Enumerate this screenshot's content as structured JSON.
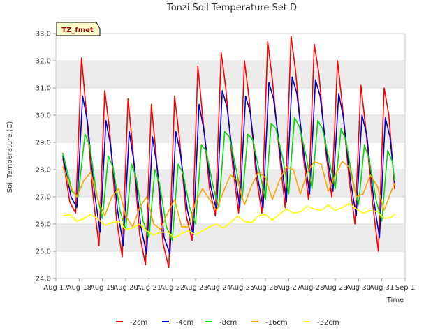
{
  "chart_data": {
    "type": "line",
    "title": "Tonzi Soil Temperature Set D",
    "xlabel": "Time",
    "ylabel": "Soil Temperature (C)",
    "ylim": [
      24.0,
      33.0
    ],
    "xlim": [
      17,
      32
    ],
    "yticks": [
      "24.0",
      "25.0",
      "26.0",
      "27.0",
      "28.0",
      "29.0",
      "30.0",
      "31.0",
      "32.0",
      "33.0"
    ],
    "xticks": [
      "Aug 17",
      "Aug 18",
      "Aug 19",
      "Aug 20",
      "Aug 21",
      "Aug 22",
      "Aug 23",
      "Aug 24",
      "Aug 25",
      "Aug 26",
      "Aug 27",
      "Aug 28",
      "Aug 29",
      "Aug 30",
      "Aug 31",
      "Sep 1"
    ],
    "legend_placement": "bottom",
    "grid": "alternating horizontal bands",
    "annotation": "TZ_fmet",
    "x_unit_note": "x values are day of August",
    "series": [
      {
        "name": "-2cm",
        "color": "#ff0000",
        "x": [
          17.3,
          17.6,
          17.85,
          18.1,
          18.3,
          18.6,
          18.85,
          19.1,
          19.3,
          19.6,
          19.85,
          20.1,
          20.3,
          20.6,
          20.85,
          21.1,
          21.3,
          21.6,
          21.85,
          22.1,
          22.3,
          22.6,
          22.85,
          23.1,
          23.3,
          23.6,
          23.85,
          24.1,
          24.3,
          24.6,
          24.85,
          25.1,
          25.3,
          25.6,
          25.85,
          26.1,
          26.3,
          26.6,
          26.85,
          27.1,
          27.3,
          27.6,
          27.85,
          28.1,
          28.3,
          28.6,
          28.85,
          29.1,
          29.3,
          29.6,
          29.85,
          30.1,
          30.3,
          30.6,
          30.85,
          31.1,
          31.3,
          31.55
        ],
        "y": [
          28.4,
          26.8,
          26.4,
          32.1,
          30.2,
          27.0,
          25.2,
          30.9,
          29.5,
          26.2,
          24.8,
          30.6,
          28.8,
          25.6,
          24.5,
          30.4,
          28.6,
          25.3,
          24.4,
          30.7,
          29.2,
          26.3,
          25.4,
          31.8,
          30.0,
          27.3,
          26.3,
          32.3,
          31.0,
          28.1,
          26.4,
          32.0,
          30.6,
          27.8,
          26.4,
          32.7,
          31.3,
          28.6,
          26.6,
          32.9,
          31.6,
          28.7,
          26.9,
          32.6,
          31.5,
          28.6,
          27.0,
          32.0,
          30.4,
          27.6,
          26.0,
          31.1,
          29.6,
          26.8,
          25.0,
          31.0,
          30.0,
          27.3
        ]
      },
      {
        "name": "-4cm",
        "color": "#0000cc",
        "x": [
          17.3,
          17.65,
          17.9,
          18.15,
          18.35,
          18.65,
          18.9,
          19.15,
          19.35,
          19.65,
          19.9,
          20.15,
          20.35,
          20.65,
          20.9,
          21.15,
          21.35,
          21.65,
          21.9,
          22.15,
          22.35,
          22.65,
          22.9,
          23.15,
          23.35,
          23.65,
          23.9,
          24.15,
          24.35,
          24.65,
          24.9,
          25.15,
          25.35,
          25.65,
          25.9,
          26.15,
          26.35,
          26.65,
          26.9,
          27.15,
          27.35,
          27.65,
          27.9,
          28.15,
          28.35,
          28.65,
          28.9,
          29.15,
          29.35,
          29.65,
          29.9,
          30.15,
          30.35,
          30.65,
          30.9,
          31.15,
          31.35,
          31.55
        ],
        "y": [
          28.5,
          27.0,
          26.6,
          30.7,
          29.8,
          27.2,
          25.7,
          29.8,
          28.9,
          26.5,
          25.2,
          29.4,
          28.3,
          25.9,
          24.9,
          29.2,
          28.1,
          25.5,
          24.9,
          29.4,
          28.6,
          26.5,
          25.6,
          30.4,
          29.5,
          27.4,
          26.5,
          30.9,
          30.3,
          28.1,
          26.6,
          30.7,
          30.1,
          27.8,
          26.6,
          31.2,
          30.6,
          28.5,
          26.8,
          31.4,
          30.8,
          28.6,
          27.1,
          31.3,
          30.7,
          28.5,
          27.2,
          30.8,
          29.9,
          27.6,
          26.3,
          30.0,
          29.3,
          26.9,
          25.5,
          29.9,
          29.2,
          27.5
        ]
      },
      {
        "name": "-8cm",
        "color": "#00dd00",
        "x": [
          17.3,
          17.7,
          17.95,
          18.25,
          18.45,
          18.75,
          19.0,
          19.25,
          19.45,
          19.75,
          20.0,
          20.25,
          20.45,
          20.75,
          21.0,
          21.25,
          21.45,
          21.75,
          22.0,
          22.25,
          22.45,
          22.75,
          23.0,
          23.25,
          23.45,
          23.75,
          24.0,
          24.25,
          24.45,
          24.75,
          25.0,
          25.25,
          25.45,
          25.75,
          26.0,
          26.25,
          26.45,
          26.75,
          27.0,
          27.25,
          27.45,
          27.75,
          28.0,
          28.25,
          28.45,
          28.75,
          29.0,
          29.25,
          29.45,
          29.75,
          30.0,
          30.25,
          30.45,
          30.75,
          31.0,
          31.25,
          31.45,
          31.55
        ],
        "y": [
          28.6,
          27.2,
          27.0,
          29.3,
          28.9,
          27.1,
          26.2,
          28.5,
          28.1,
          26.5,
          25.8,
          28.2,
          27.7,
          26.1,
          25.5,
          28.0,
          27.5,
          25.9,
          25.4,
          28.2,
          27.9,
          26.6,
          26.0,
          28.9,
          28.7,
          27.4,
          26.6,
          29.4,
          29.2,
          28.0,
          26.9,
          29.3,
          29.1,
          27.9,
          26.9,
          29.7,
          29.5,
          28.4,
          27.1,
          29.9,
          29.6,
          28.5,
          27.3,
          29.8,
          29.5,
          28.3,
          27.3,
          29.5,
          29.1,
          27.6,
          26.7,
          28.9,
          28.4,
          26.9,
          26.1,
          28.7,
          28.3,
          27.6
        ]
      },
      {
        "name": "-16cm",
        "color": "#ffa500",
        "x": [
          17.3,
          17.6,
          17.9,
          18.2,
          18.5,
          18.8,
          19.1,
          19.4,
          19.7,
          20.0,
          20.3,
          20.6,
          20.9,
          21.2,
          21.5,
          21.8,
          22.1,
          22.4,
          22.7,
          23.0,
          23.3,
          23.6,
          23.9,
          24.2,
          24.5,
          24.8,
          25.1,
          25.4,
          25.7,
          26.0,
          26.3,
          26.6,
          26.9,
          27.2,
          27.5,
          27.8,
          28.1,
          28.4,
          28.7,
          29.0,
          29.3,
          29.6,
          29.9,
          30.2,
          30.5,
          30.8,
          31.1,
          31.4,
          31.55
        ],
        "y": [
          28.1,
          27.4,
          27.0,
          27.6,
          27.9,
          26.9,
          26.3,
          27.0,
          27.3,
          26.3,
          25.9,
          26.6,
          27.0,
          26.0,
          25.8,
          26.4,
          26.9,
          25.9,
          25.9,
          26.8,
          27.3,
          26.9,
          26.5,
          27.2,
          27.8,
          27.6,
          26.7,
          27.4,
          27.9,
          27.7,
          26.9,
          27.6,
          28.1,
          28.0,
          27.1,
          27.9,
          28.3,
          28.2,
          27.2,
          27.8,
          28.3,
          28.1,
          27.0,
          27.1,
          27.8,
          27.4,
          26.5,
          27.2,
          27.5
        ]
      },
      {
        "name": "-32cm",
        "color": "#ffff00",
        "x": [
          17.3,
          17.6,
          17.9,
          18.2,
          18.5,
          18.8,
          19.1,
          19.4,
          19.7,
          20.0,
          20.3,
          20.6,
          20.9,
          21.2,
          21.5,
          21.8,
          22.1,
          22.4,
          22.7,
          23.0,
          23.3,
          23.6,
          23.9,
          24.2,
          24.5,
          24.8,
          25.1,
          25.4,
          25.7,
          26.0,
          26.3,
          26.6,
          26.9,
          27.2,
          27.5,
          27.8,
          28.1,
          28.4,
          28.7,
          29.0,
          29.3,
          29.6,
          29.9,
          30.2,
          30.5,
          30.8,
          31.1,
          31.4,
          31.55
        ],
        "y": [
          26.3,
          26.35,
          26.1,
          26.2,
          26.35,
          26.2,
          25.95,
          26.05,
          26.1,
          25.8,
          25.85,
          26.0,
          25.75,
          25.6,
          25.7,
          25.7,
          25.5,
          25.65,
          25.75,
          25.6,
          25.75,
          25.9,
          26.0,
          25.85,
          26.05,
          26.3,
          26.1,
          26.05,
          26.3,
          26.35,
          26.15,
          26.35,
          26.55,
          26.4,
          26.45,
          26.65,
          26.55,
          26.5,
          26.7,
          26.5,
          26.6,
          26.75,
          26.55,
          26.4,
          26.5,
          26.45,
          26.2,
          26.25,
          26.35
        ]
      }
    ]
  }
}
